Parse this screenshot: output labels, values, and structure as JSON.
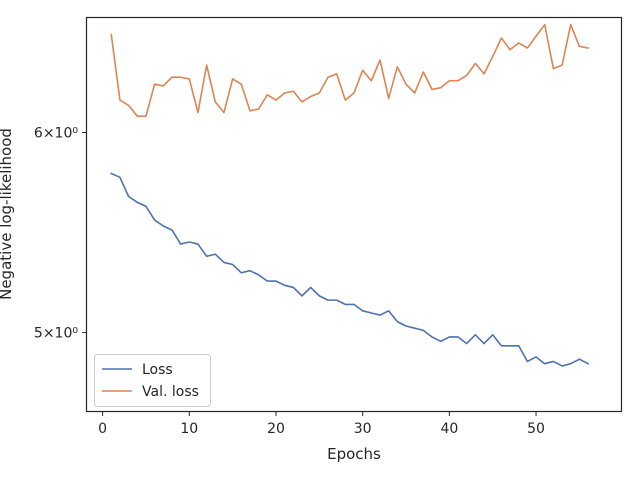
{
  "chart_data": {
    "type": "line",
    "xlabel": "Epochs",
    "ylabel": "Negative log-likelihood",
    "xlim": [
      -1.8,
      59.8
    ],
    "ylim": [
      4.655,
      6.66
    ],
    "yscale": "log",
    "x_ticks": [
      {
        "value": 0,
        "label": "0"
      },
      {
        "value": 10,
        "label": "10"
      },
      {
        "value": 20,
        "label": "20"
      },
      {
        "value": 30,
        "label": "30"
      },
      {
        "value": 40,
        "label": "40"
      },
      {
        "value": 50,
        "label": "50"
      }
    ],
    "y_ticks": [
      {
        "value": 5,
        "label": "5×10⁰"
      },
      {
        "value": 6,
        "label": "6×10⁰"
      }
    ],
    "grid": false,
    "legend": "lower-left",
    "x": [
      1,
      2,
      3,
      4,
      5,
      6,
      7,
      8,
      9,
      10,
      11,
      12,
      13,
      14,
      15,
      16,
      17,
      18,
      19,
      20,
      21,
      22,
      23,
      24,
      25,
      26,
      27,
      28,
      29,
      30,
      31,
      32,
      33,
      34,
      35,
      36,
      37,
      38,
      39,
      40,
      41,
      42,
      43,
      44,
      45,
      46,
      47,
      48,
      49,
      50,
      51,
      52,
      53,
      54,
      55,
      56
    ],
    "series": [
      {
        "name": "Loss",
        "color": "#4c72b0",
        "values": [
          5.78,
          5.76,
          5.66,
          5.63,
          5.61,
          5.54,
          5.51,
          5.49,
          5.42,
          5.43,
          5.42,
          5.36,
          5.37,
          5.33,
          5.32,
          5.28,
          5.29,
          5.27,
          5.24,
          5.24,
          5.22,
          5.21,
          5.17,
          5.21,
          5.17,
          5.15,
          5.15,
          5.13,
          5.13,
          5.1,
          5.09,
          5.08,
          5.1,
          5.05,
          5.03,
          5.02,
          5.01,
          4.98,
          4.96,
          4.98,
          4.98,
          4.95,
          4.99,
          4.95,
          4.99,
          4.94,
          4.94,
          4.94,
          4.87,
          4.89,
          4.86,
          4.87,
          4.85,
          4.86,
          4.88,
          4.86
        ]
      },
      {
        "name": "Val. loss",
        "color": "#dd8452",
        "values": [
          6.56,
          6.18,
          6.15,
          6.09,
          6.09,
          6.27,
          6.26,
          6.31,
          6.31,
          6.3,
          6.11,
          6.38,
          6.17,
          6.11,
          6.3,
          6.27,
          6.12,
          6.13,
          6.21,
          6.18,
          6.22,
          6.23,
          6.17,
          6.2,
          6.22,
          6.31,
          6.33,
          6.18,
          6.22,
          6.35,
          6.29,
          6.41,
          6.19,
          6.37,
          6.27,
          6.22,
          6.34,
          6.24,
          6.25,
          6.29,
          6.29,
          6.32,
          6.39,
          6.33,
          6.43,
          6.54,
          6.47,
          6.51,
          6.48,
          6.55,
          6.62,
          6.36,
          6.38,
          6.62,
          6.49,
          6.48
        ]
      }
    ]
  }
}
